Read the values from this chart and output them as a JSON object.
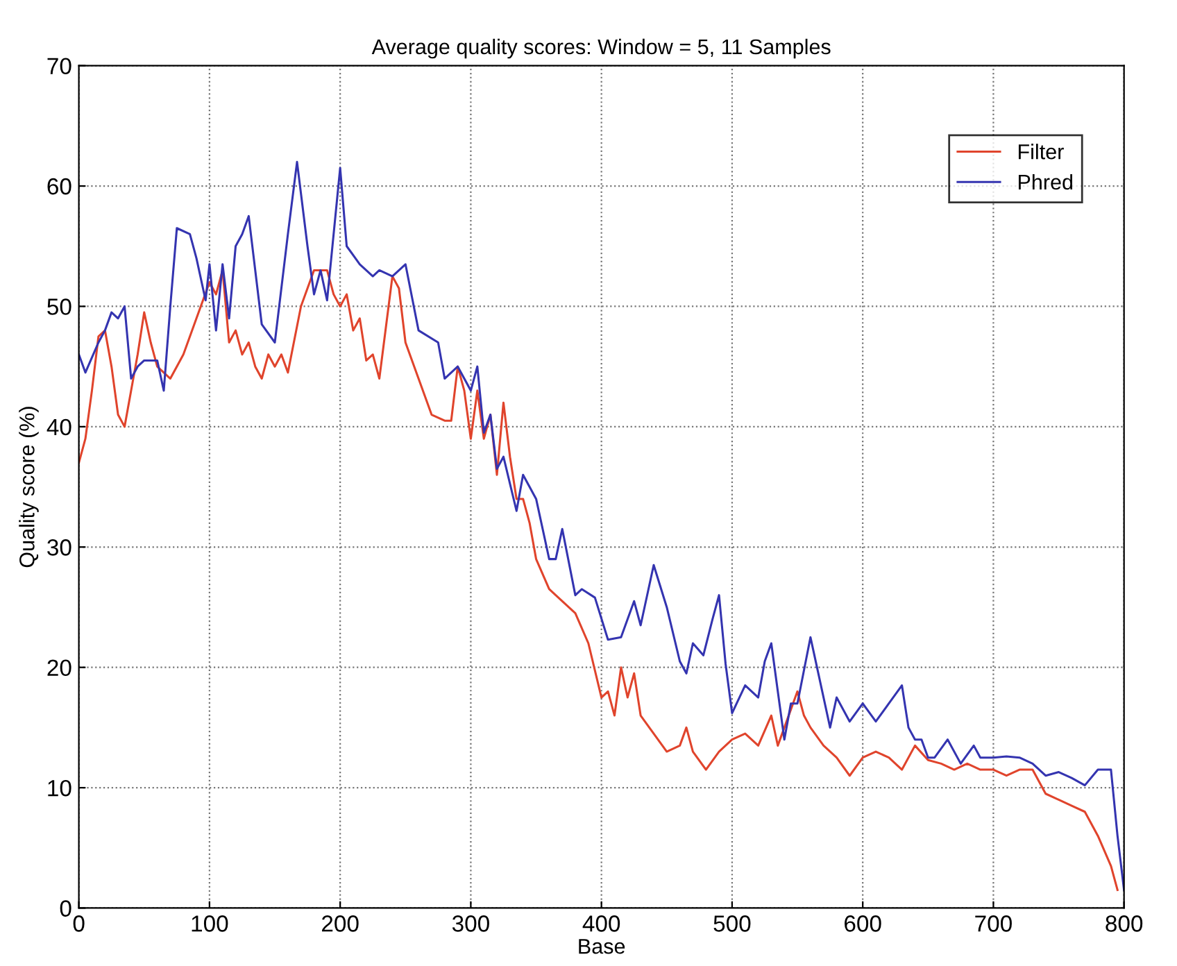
{
  "chart_data": {
    "type": "line",
    "title": "Average quality scores: Window = 5, 11 Samples",
    "xlabel": "Base",
    "ylabel": "Quality score (%)",
    "xlim": [
      0,
      800
    ],
    "xticks": [
      0,
      100,
      200,
      300,
      400,
      500,
      600,
      700,
      800
    ],
    "ylim": [
      0,
      70
    ],
    "yticks": [
      0,
      10,
      20,
      30,
      40,
      50,
      60,
      70
    ],
    "grid": true,
    "legend": "top right",
    "line_style": "solid",
    "marker": "none",
    "series": [
      {
        "name": "Filter",
        "color": "#e0442c",
        "x": [
          0,
          5,
          10,
          15,
          20,
          25,
          30,
          35,
          40,
          45,
          50,
          55,
          60,
          70,
          80,
          90,
          100,
          105,
          110,
          115,
          120,
          125,
          130,
          135,
          140,
          145,
          150,
          155,
          160,
          170,
          180,
          190,
          195,
          200,
          205,
          210,
          215,
          220,
          225,
          230,
          240,
          245,
          250,
          260,
          270,
          280,
          285,
          290,
          295,
          300,
          305,
          310,
          315,
          320,
          325,
          330,
          335,
          340,
          345,
          350,
          360,
          365,
          380,
          390,
          400,
          405,
          410,
          415,
          420,
          425,
          430,
          440,
          450,
          460,
          465,
          470,
          480,
          490,
          500,
          510,
          520,
          530,
          535,
          545,
          550,
          555,
          560,
          570,
          580,
          590,
          600,
          610,
          620,
          630,
          640,
          650,
          660,
          670,
          680,
          690,
          700,
          710,
          720,
          730,
          740,
          750,
          760,
          770,
          780,
          790,
          795
        ],
        "values": [
          37,
          39,
          43,
          47.5,
          48,
          45,
          41,
          40,
          43,
          46,
          49.5,
          47,
          45,
          44,
          46,
          49,
          52,
          51,
          53,
          47,
          48,
          46,
          47,
          45,
          44,
          46,
          45,
          46,
          44.5,
          50,
          53,
          53,
          51,
          50,
          51,
          48,
          49,
          45.5,
          46,
          44,
          52.5,
          51.5,
          47,
          44,
          41,
          40.5,
          40.5,
          45,
          43,
          39,
          43,
          39,
          41,
          36,
          42,
          37.5,
          34,
          34,
          32,
          29,
          26.5,
          26,
          24.5,
          22,
          17.5,
          18,
          16,
          20,
          17.5,
          19.5,
          16,
          14.5,
          13,
          13.5,
          15,
          13,
          11.5,
          13,
          14,
          14.5,
          13.5,
          16,
          13.5,
          16.5,
          18,
          16,
          15,
          13.5,
          12.5,
          11,
          12.5,
          13,
          12.5,
          11.5,
          13.5,
          12.3,
          12,
          11.5,
          12,
          11.5,
          11.5,
          11,
          11.5,
          11.5,
          9.5,
          9,
          8.5,
          8,
          6,
          3.5,
          1.5
        ]
      },
      {
        "name": "Phred",
        "color": "#3434b0",
        "x": [
          0,
          5,
          15,
          20,
          25,
          30,
          35,
          40,
          45,
          50,
          60,
          65,
          70,
          75,
          85,
          90,
          97,
          100,
          105,
          110,
          115,
          120,
          125,
          130,
          140,
          150,
          160,
          167,
          175,
          180,
          185,
          190,
          200,
          205,
          215,
          225,
          230,
          240,
          250,
          260,
          275,
          280,
          290,
          300,
          305,
          310,
          315,
          320,
          325,
          335,
          340,
          350,
          360,
          365,
          370,
          380,
          385,
          395,
          405,
          415,
          425,
          430,
          440,
          450,
          460,
          465,
          470,
          478,
          485,
          490,
          495,
          500,
          510,
          520,
          525,
          530,
          540,
          545,
          550,
          560,
          565,
          575,
          580,
          590,
          600,
          610,
          620,
          630,
          635,
          640,
          645,
          650,
          655,
          665,
          675,
          685,
          690,
          700,
          710,
          720,
          730,
          740,
          750,
          760,
          770,
          780,
          790,
          795,
          800
        ],
        "values": [
          46,
          44.5,
          47,
          48,
          49.5,
          49,
          50,
          44,
          45,
          45.5,
          45.5,
          43,
          50,
          56.5,
          56,
          54,
          50.5,
          53.5,
          48,
          53.5,
          49,
          55,
          56,
          57.5,
          48.5,
          47,
          56,
          62,
          55,
          51,
          53,
          50.5,
          61.5,
          55,
          53.5,
          52.5,
          53,
          52.5,
          53.5,
          48,
          47,
          44,
          45,
          43,
          45,
          39.5,
          41,
          36.5,
          37.5,
          33,
          36,
          34,
          29,
          29,
          31.5,
          26,
          26.5,
          25.8,
          22.3,
          22.5,
          25.5,
          23.5,
          28.5,
          25,
          20.5,
          19.5,
          22,
          21,
          24,
          26,
          20.3,
          16.2,
          18.5,
          17.5,
          20.5,
          22,
          14,
          17,
          17,
          22.5,
          20,
          15,
          17.5,
          15.5,
          17,
          15.5,
          17,
          18.5,
          15,
          14,
          14,
          12.5,
          12.5,
          14,
          12,
          13.5,
          12.5,
          12.5,
          12.6,
          12.5,
          12,
          11,
          11.3,
          10.8,
          10.2,
          11.5,
          11.5,
          6,
          1.5
        ]
      }
    ]
  }
}
